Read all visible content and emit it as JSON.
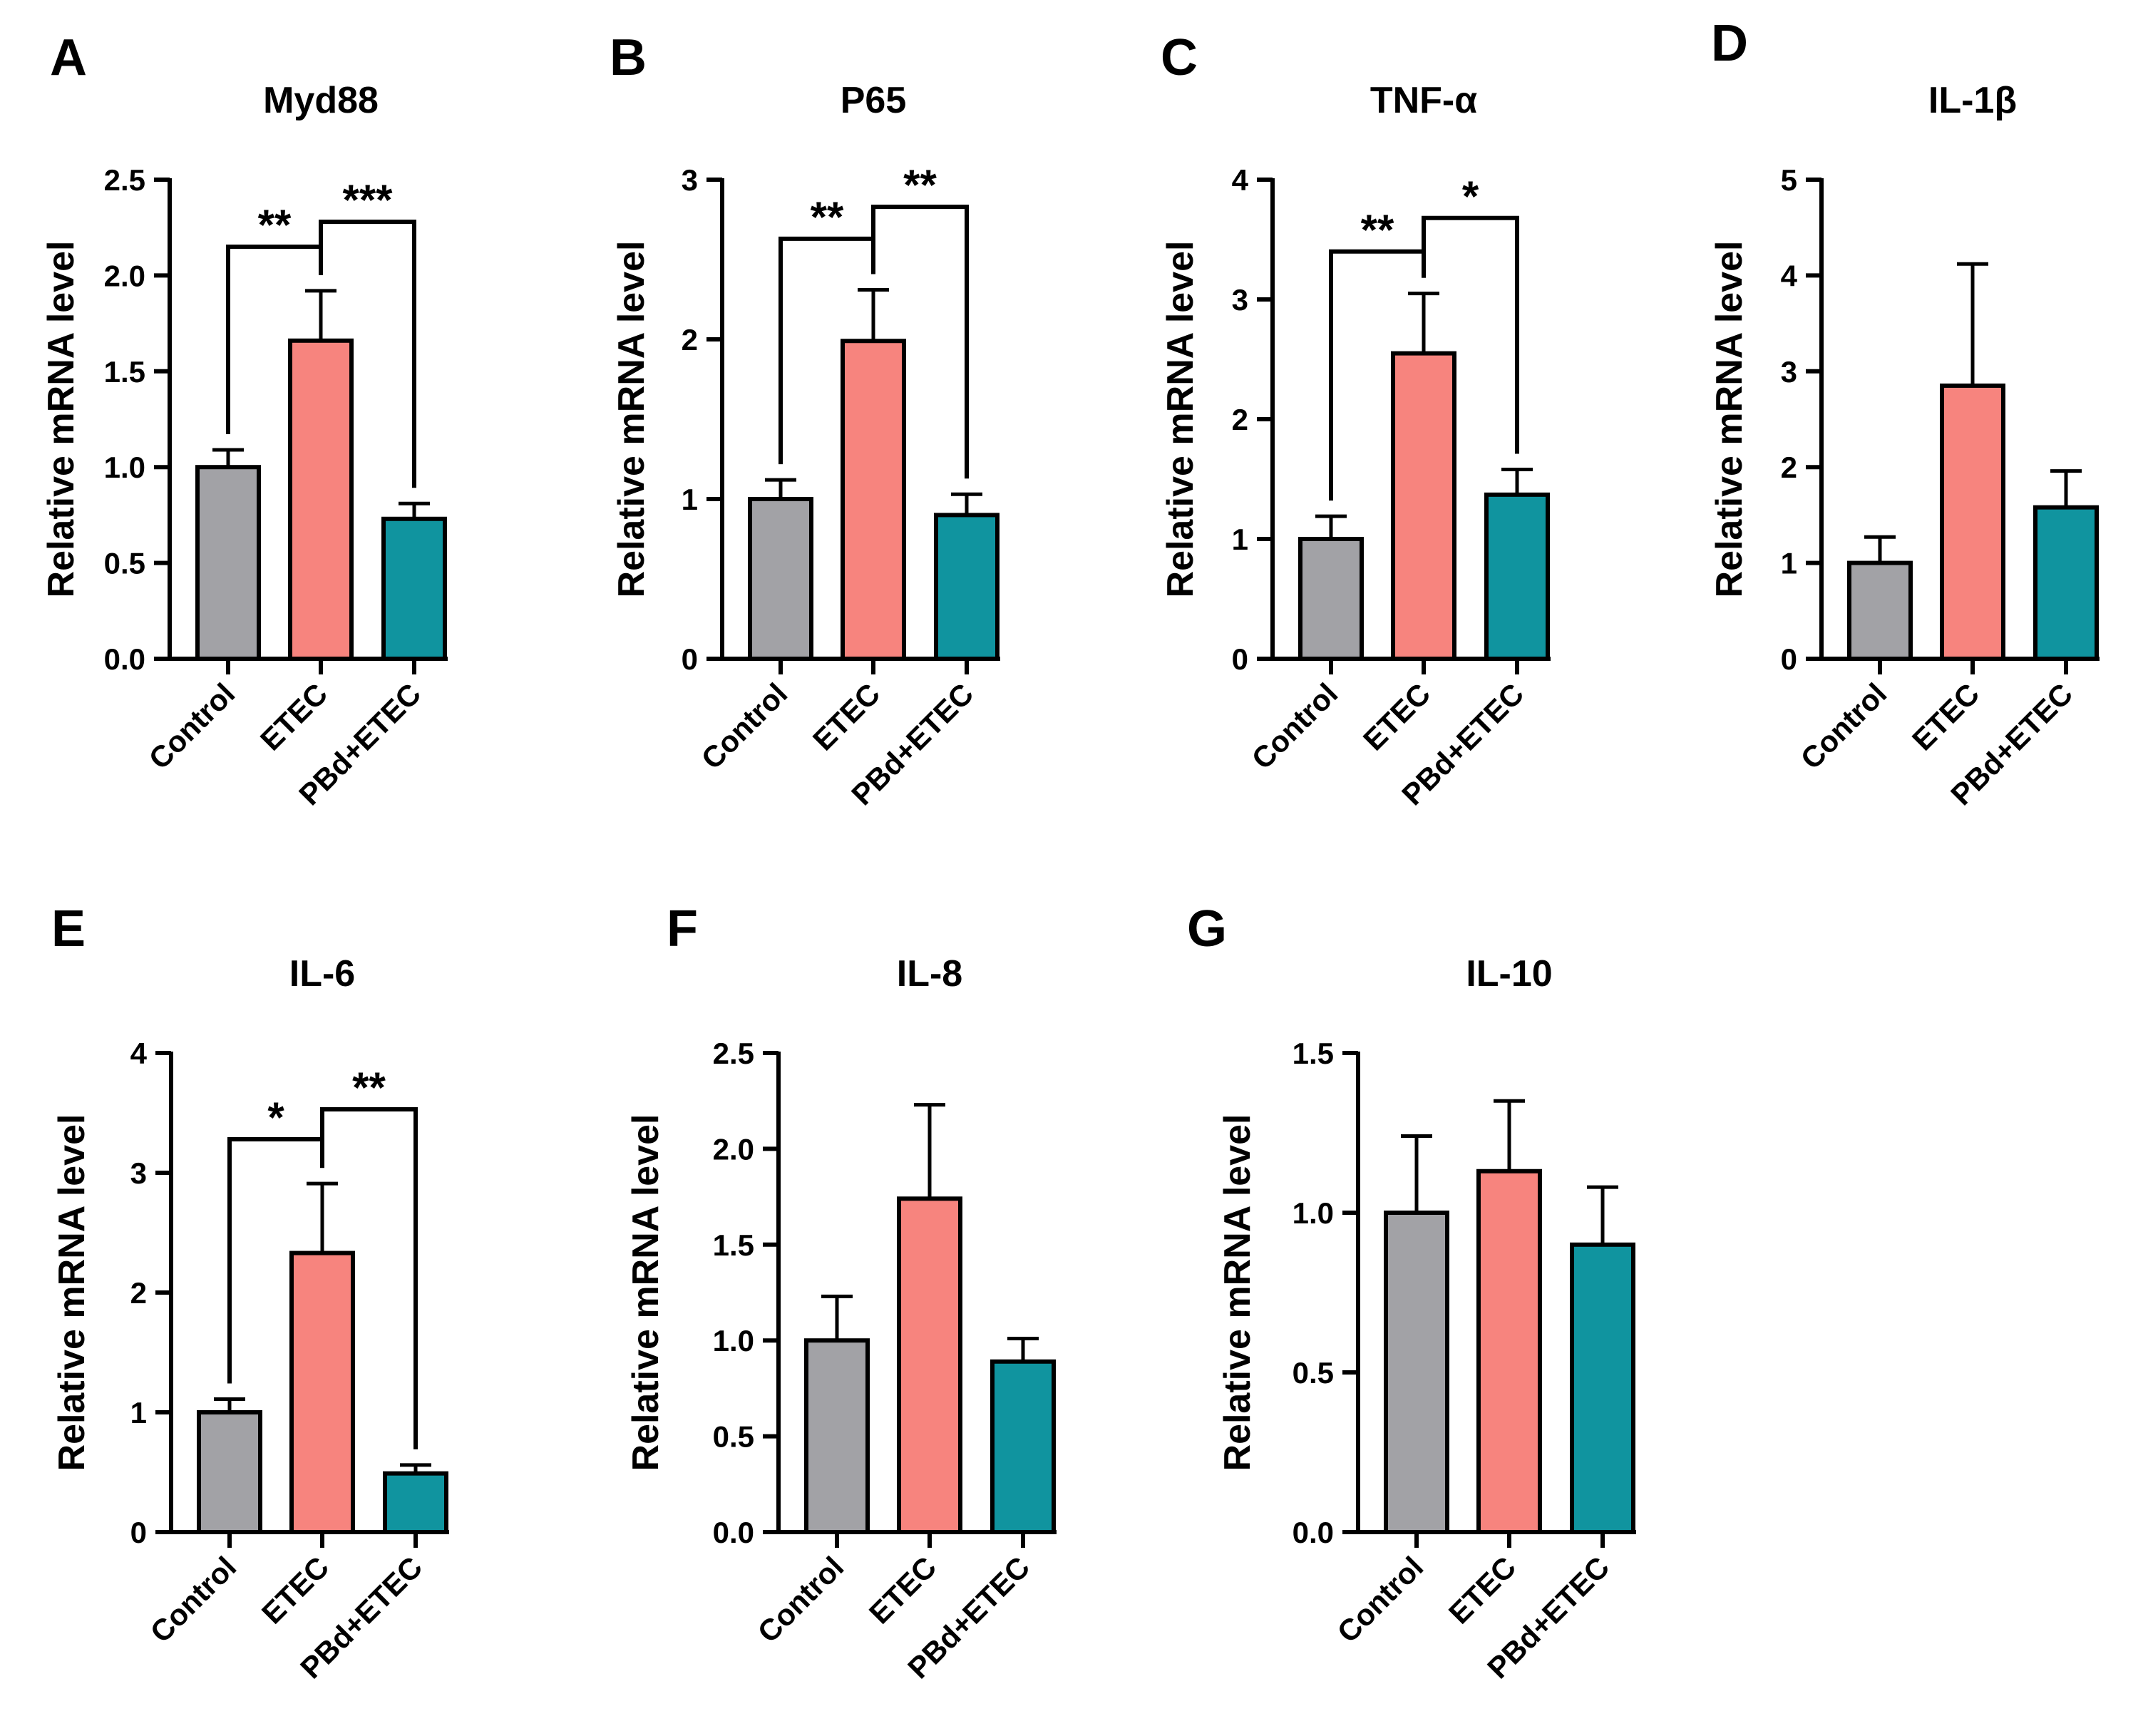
{
  "colors": {
    "control": "#a2a2a6",
    "etec": "#f7847e",
    "pbd": "#10949f",
    "ink": "#000000"
  },
  "chart_data": [
    {
      "panel": "A",
      "title": "Myd88",
      "type": "bar",
      "ylabel": "Relative mRNA level",
      "ylim": [
        0,
        2.5
      ],
      "yticks": [
        "0.0",
        "0.5",
        "1.0",
        "1.5",
        "2.0",
        "2.5"
      ],
      "categories": [
        "Control",
        "ETEC",
        "PBd+ETEC"
      ],
      "values": [
        1.0,
        1.66,
        0.73
      ],
      "errors": [
        0.09,
        0.26,
        0.08
      ],
      "significance": [
        {
          "from": 0,
          "to": 1,
          "label": "**",
          "level": 2.15
        },
        {
          "from": 1,
          "to": 2,
          "label": "***",
          "level": 2.28
        }
      ]
    },
    {
      "panel": "B",
      "title": "P65",
      "type": "bar",
      "ylabel": "Relative mRNA level",
      "ylim": [
        0,
        3
      ],
      "yticks": [
        "0",
        "1",
        "2",
        "3"
      ],
      "categories": [
        "Control",
        "ETEC",
        "PBd+ETEC"
      ],
      "values": [
        1.0,
        1.99,
        0.9
      ],
      "errors": [
        0.12,
        0.32,
        0.13
      ],
      "significance": [
        {
          "from": 0,
          "to": 1,
          "label": "**",
          "level": 2.63
        },
        {
          "from": 1,
          "to": 2,
          "label": "**",
          "level": 2.83
        }
      ]
    },
    {
      "panel": "C",
      "title": "TNF-α",
      "type": "bar",
      "ylabel": "Relative mRNA level",
      "ylim": [
        0,
        4
      ],
      "yticks": [
        "0",
        "1",
        "2",
        "3",
        "4"
      ],
      "categories": [
        "Control",
        "ETEC",
        "PBd+ETEC"
      ],
      "values": [
        1.0,
        2.55,
        1.37
      ],
      "errors": [
        0.19,
        0.5,
        0.21
      ],
      "significance": [
        {
          "from": 0,
          "to": 1,
          "label": "**",
          "level": 3.4
        },
        {
          "from": 1,
          "to": 2,
          "label": "*",
          "level": 3.68
        }
      ]
    },
    {
      "panel": "D",
      "title": "IL-1β",
      "type": "bar",
      "ylabel": "Relative mRNA level",
      "ylim": [
        0,
        5
      ],
      "yticks": [
        "0",
        "1",
        "2",
        "3",
        "4",
        "5"
      ],
      "categories": [
        "Control",
        "ETEC",
        "PBd+ETEC"
      ],
      "values": [
        1.0,
        2.85,
        1.58
      ],
      "errors": [
        0.27,
        1.27,
        0.38
      ],
      "significance": []
    },
    {
      "panel": "E",
      "title": "IL-6",
      "type": "bar",
      "ylabel": "Relative mRNA level",
      "ylim": [
        0,
        4
      ],
      "yticks": [
        "0",
        "1",
        "2",
        "3",
        "4"
      ],
      "categories": [
        "Control",
        "ETEC",
        "PBd+ETEC"
      ],
      "values": [
        1.0,
        2.33,
        0.49
      ],
      "errors": [
        0.11,
        0.58,
        0.07
      ],
      "significance": [
        {
          "from": 0,
          "to": 1,
          "label": "*",
          "level": 3.28
        },
        {
          "from": 1,
          "to": 2,
          "label": "**",
          "level": 3.53
        }
      ]
    },
    {
      "panel": "F",
      "title": "IL-8",
      "type": "bar",
      "ylabel": "Relative mRNA level",
      "ylim": [
        0,
        2.5
      ],
      "yticks": [
        "0.0",
        "0.5",
        "1.0",
        "1.5",
        "2.0",
        "2.5"
      ],
      "categories": [
        "Control",
        "ETEC",
        "PBd+ETEC"
      ],
      "values": [
        1.0,
        1.74,
        0.89
      ],
      "errors": [
        0.23,
        0.49,
        0.12
      ],
      "significance": []
    },
    {
      "panel": "G",
      "title": "IL-10",
      "type": "bar",
      "ylabel": "Relative mRNA level",
      "ylim": [
        0,
        1.5
      ],
      "yticks": [
        "0.0",
        "0.5",
        "1.0",
        "1.5"
      ],
      "categories": [
        "Control",
        "ETEC",
        "PBd+ETEC"
      ],
      "values": [
        1.0,
        1.13,
        0.9
      ],
      "errors": [
        0.24,
        0.22,
        0.18
      ],
      "significance": []
    }
  ]
}
